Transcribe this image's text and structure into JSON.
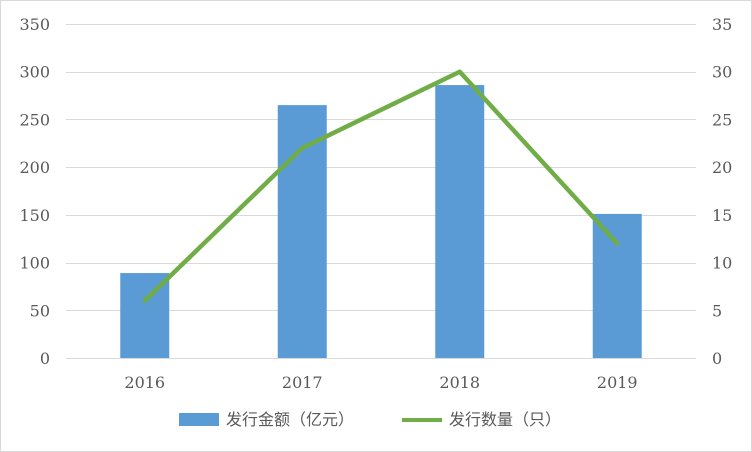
{
  "chart_data": {
    "type": "bar+line",
    "categories": [
      "2016",
      "2017",
      "2018",
      "2019"
    ],
    "series": [
      {
        "name": "发行金额（亿元）",
        "type": "bar",
        "axis": "left",
        "values": [
          89,
          265,
          286,
          151
        ],
        "color": "#5b9bd5"
      },
      {
        "name": "发行数量（只）",
        "type": "line",
        "axis": "right",
        "values": [
          6,
          22,
          30,
          12
        ],
        "color": "#70ad47"
      }
    ],
    "y_left": {
      "min": 0,
      "max": 350,
      "step": 50,
      "ticks": [
        "0",
        "50",
        "100",
        "150",
        "200",
        "250",
        "300",
        "350"
      ]
    },
    "y_right": {
      "min": 0,
      "max": 35,
      "step": 5,
      "ticks": [
        "0",
        "5",
        "10",
        "15",
        "20",
        "25",
        "30",
        "35"
      ]
    },
    "grid": true,
    "legend_position": "bottom",
    "gridline_color": "#d9d9d9"
  }
}
